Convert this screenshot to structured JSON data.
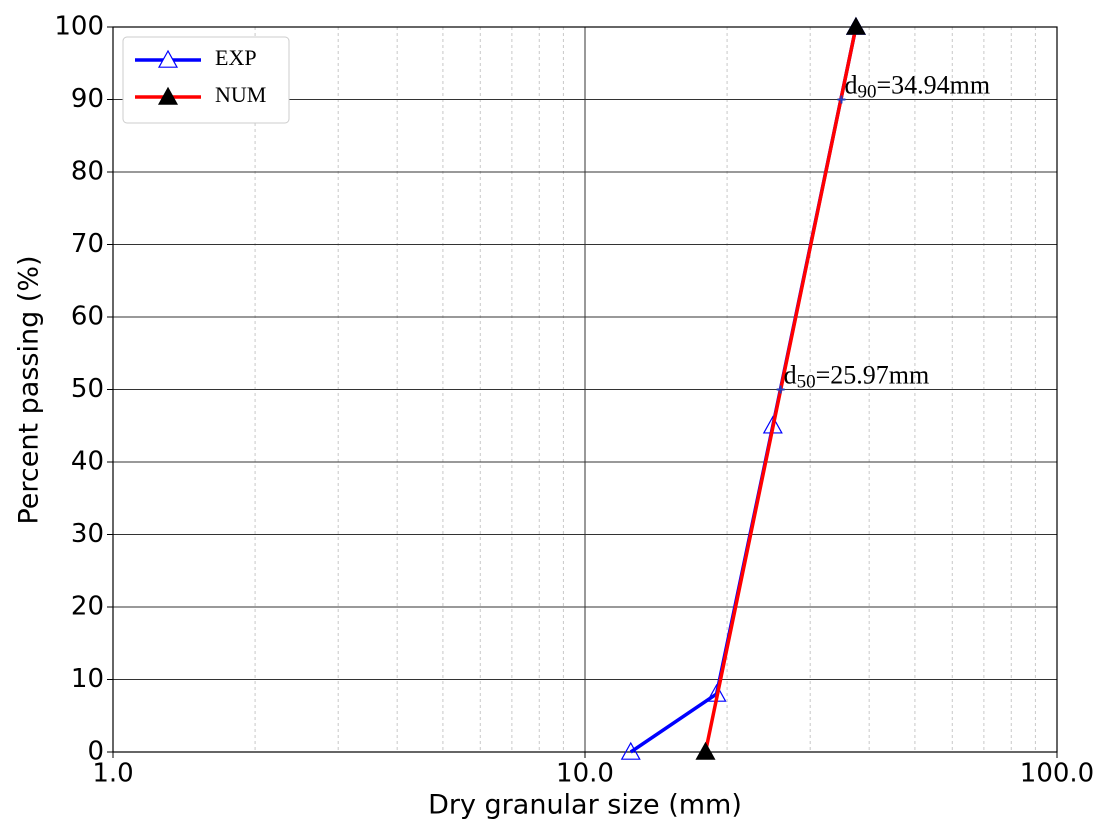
{
  "chart_data": {
    "type": "line",
    "xlabel": "Dry granular size (mm)",
    "ylabel": "Percent passing (%)",
    "xscale": "log",
    "xlim": [
      1,
      100
    ],
    "ylim": [
      0,
      100
    ],
    "xticks": [
      {
        "value": 1,
        "label": "1.0"
      },
      {
        "value": 10,
        "label": "10.0"
      },
      {
        "value": 100,
        "label": "100.0"
      }
    ],
    "xminorticks": [
      2,
      3,
      4,
      5,
      6,
      7,
      8,
      9,
      20,
      30,
      40,
      50,
      60,
      70,
      80,
      90
    ],
    "yticks": [
      0,
      10,
      20,
      30,
      40,
      50,
      60,
      70,
      80,
      90,
      100
    ],
    "grid": true,
    "legend": "upper left",
    "series": [
      {
        "name": "EXP",
        "color": "#0000ff",
        "marker_fill": "none",
        "x": [
          12.5,
          19,
          25,
          37.5
        ],
        "values": [
          0,
          8,
          45,
          100
        ]
      },
      {
        "name": "NUM",
        "color": "#ff0000",
        "marker_fill": "#000000",
        "x": [
          18,
          37.5
        ],
        "values": [
          0,
          100
        ]
      }
    ],
    "annotations": [
      {
        "x": 25.97,
        "y": 50,
        "prefix": "d",
        "subscript": "50",
        "suffix": "=25.97mm"
      },
      {
        "x": 34.94,
        "y": 90,
        "prefix": "d",
        "subscript": "90",
        "suffix": "=34.94mm"
      }
    ]
  }
}
